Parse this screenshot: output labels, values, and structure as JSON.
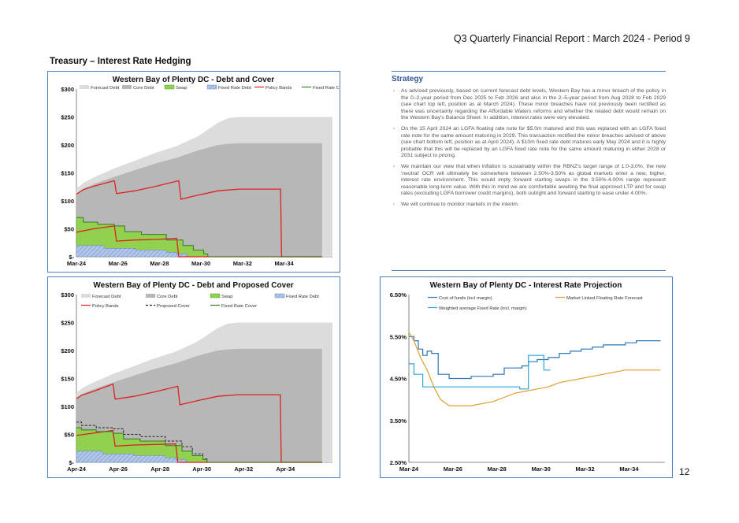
{
  "header": {
    "report_title": "Q3 Quarterly Financial Report : March 2024 - Period 9"
  },
  "section_title": "Treasury – Interest Rate Hedging",
  "page_number": "12",
  "colors": {
    "forecast_debt": "#dcdcdc",
    "core_debt": "#b7b7b7",
    "swap": "#92d050",
    "fixed_rate_debt": "#b4c7e7",
    "policy_bands": "#e02020",
    "fixed_rate_cover": "#3a7d22",
    "cost_of_funds": "#2e75b6",
    "floating_forecast": "#e0a030",
    "weighted_fixed": "#2aa8d8",
    "panel_border": "#4f7fb8"
  },
  "strategy": {
    "title": "Strategy",
    "bullets": [
      "As advised previously, based on current forecast debt levels, Western Bay has a minor breach of the policy in the 0–2-year period from Dec 2025 to Feb 2026 and also in the 2–5-year period from Aug 2028 to Feb 2029 (see chart top left, position as at March 2024). These minor breaches have not previously been rectified as there was uncertainty regarding the Affordable Waters reforms and whether the related debt would remain on the Western Bay's Balance Sheet. In addition, interest rates were very elevated.",
      "On the 15 April 2024 an LGFA floating rate note for $5.0m matured and this was replaced with an LGFA fixed rate note for the same amount maturing in 2029. This transaction rectified the minor breaches advised of above (see chart bottom left, position as at April 2024). A $10m fixed rate debt matures early May 2024 and it is highly probable that this will be replaced by an LGFA fixed rate note for the same amount maturing in either 2028 or 2031 subject to pricing.",
      "We maintain our view that when inflation is sustainably within the RBNZ's target range of 1.0-3.0%, the new 'neutral' OCR will ultimately be somewhere between 2.50%-3.50% as global markets enter a new, higher, interest rate environment. This would imply forward starting swaps in the 3.50%-4.00% range represent reasonable long-term value. With this in mind we are comfortable awaiting the final approved LTP and for swap rates (excluding LGFA borrower credit margins), both outright and forward starting to ease under 4.00%.",
      "We will continue to monitor markets in the interim."
    ]
  },
  "chart_data": [
    {
      "type": "area",
      "title": "Western Bay of Plenty DC - Debt and Cover",
      "legend": [
        "Forecast Debt",
        "Core Debt",
        "Swap",
        "Fixed Rate Debt",
        "Policy Bands",
        "Fixed Rate Cover"
      ],
      "legend_placement": "top",
      "y_ticks": [
        "$300",
        "$250",
        "$200",
        "$150",
        "$100",
        "$50",
        "$-"
      ],
      "x_ticks": [
        "Mar-24",
        "Mar-26",
        "Mar-28",
        "Mar-30",
        "Mar-32",
        "Mar-34"
      ],
      "ylim": [
        0,
        300
      ],
      "xlim": [
        2024.17,
        2036.5
      ],
      "x_tick_values": [
        2024.17,
        2026.17,
        2028.17,
        2030.17,
        2032.17,
        2034.17
      ],
      "series": [
        {
          "name": "Forecast Debt",
          "style": "area",
          "x": [
            2024.17,
            2024.5,
            2025,
            2026,
            2027,
            2028,
            2029,
            2030,
            2031,
            2031.5,
            2032,
            2033,
            2034,
            2035,
            2036,
            2036.5
          ],
          "y": [
            122,
            132,
            142,
            158,
            172,
            186,
            198,
            215,
            240,
            248,
            250,
            250,
            250,
            250,
            250,
            250
          ]
        },
        {
          "name": "Core Debt",
          "style": "area",
          "x": [
            2024.17,
            2024.5,
            2025,
            2026,
            2027,
            2028,
            2029,
            2030,
            2031,
            2031.5,
            2032,
            2033,
            2034,
            2035,
            2036
          ],
          "y": [
            112,
            122,
            130,
            143,
            155,
            167,
            177,
            190,
            200,
            202,
            203,
            203,
            203,
            203,
            203
          ]
        },
        {
          "name": "Swap",
          "style": "step-area",
          "x": [
            2024.17,
            2024.5,
            2025.2,
            2026,
            2026.5,
            2027.3,
            2028.5,
            2029.3,
            2029.8,
            2030.3,
            2030.5
          ],
          "y": [
            70,
            62,
            58,
            55,
            45,
            40,
            30,
            20,
            12,
            5,
            0
          ]
        },
        {
          "name": "Fixed Rate Debt",
          "style": "step-area",
          "x": [
            2024.17,
            2025.5,
            2027,
            2028.5,
            2029,
            2029.5
          ],
          "y": [
            20,
            15,
            12,
            8,
            5,
            0
          ]
        },
        {
          "name": "Policy Bands",
          "style": "line",
          "x": [
            2024.17,
            2024.5,
            2025,
            2026,
            2026.1,
            2027,
            2028,
            2029.1,
            2029.2,
            2030,
            2031,
            2032,
            2033,
            2034,
            2034.05,
            2036
          ],
          "y": [
            112,
            120,
            126,
            136,
            113,
            118,
            126,
            136,
            103,
            110,
            118,
            121,
            121,
            121,
            0,
            0
          ]
        },
        {
          "name": "Policy Bands (lower)",
          "style": "line",
          "x": [
            2024.17,
            2025,
            2026,
            2026.1,
            2027,
            2028,
            2029,
            2029.1,
            2036
          ],
          "y": [
            44,
            50,
            55,
            28,
            30,
            31,
            33,
            0,
            0
          ]
        },
        {
          "name": "Fixed Rate Cover",
          "style": "step-line",
          "x": [
            2024.17,
            2024.5,
            2025.2,
            2026,
            2026.5,
            2027.3,
            2028.5,
            2029.3,
            2029.8,
            2030.3,
            2030.5,
            2036
          ],
          "y": [
            70,
            62,
            58,
            55,
            45,
            40,
            30,
            20,
            12,
            5,
            0,
            0
          ]
        }
      ]
    },
    {
      "type": "area",
      "title": "Western Bay of Plenty DC - Debt and Proposed Cover",
      "legend": [
        "Forecast Debt",
        "Core Debt",
        "Swap",
        "Fixed Rate Debt",
        "Policy Bands",
        "Proposed Cover",
        "Fixed Rate Cover"
      ],
      "legend_placement": "top",
      "y_ticks": [
        "$300",
        "$250",
        "$200",
        "$150",
        "$100",
        "$50",
        "$-"
      ],
      "x_ticks": [
        "Apr-24",
        "Apr-26",
        "Apr-28",
        "Apr-30",
        "Apr-32",
        "Apr-34"
      ],
      "ylim": [
        0,
        300
      ],
      "xlim": [
        2024.25,
        2036.5
      ],
      "x_tick_values": [
        2024.25,
        2026.25,
        2028.25,
        2030.25,
        2032.25,
        2034.25
      ],
      "series": [
        {
          "name": "Forecast Debt",
          "style": "area",
          "x": [
            2024.25,
            2024.5,
            2025,
            2026,
            2027,
            2028,
            2029,
            2030,
            2031,
            2031.5,
            2032,
            2033,
            2034,
            2035,
            2036,
            2036.5
          ],
          "y": [
            124,
            132,
            142,
            158,
            172,
            186,
            198,
            215,
            240,
            248,
            250,
            250,
            250,
            250,
            250,
            250
          ]
        },
        {
          "name": "Core Debt",
          "style": "area",
          "x": [
            2024.25,
            2024.5,
            2025,
            2026,
            2027,
            2028,
            2029,
            2030,
            2031,
            2031.5,
            2032,
            2033,
            2034,
            2035,
            2036
          ],
          "y": [
            114,
            122,
            130,
            143,
            155,
            167,
            177,
            190,
            200,
            202,
            203,
            203,
            203,
            203,
            203
          ]
        },
        {
          "name": "Swap",
          "style": "step-area",
          "x": [
            2024.25,
            2024.5,
            2025.2,
            2026,
            2026.5,
            2027.3,
            2028.5,
            2029.3,
            2029.8,
            2030.3,
            2030.5
          ],
          "y": [
            62,
            58,
            55,
            52,
            42,
            38,
            30,
            20,
            12,
            5,
            0
          ]
        },
        {
          "name": "Fixed Rate Debt",
          "style": "step-area",
          "x": [
            2024.25,
            2025.5,
            2027,
            2028.5,
            2029,
            2029.5
          ],
          "y": [
            20,
            15,
            12,
            8,
            5,
            0
          ]
        },
        {
          "name": "Policy Bands",
          "style": "line",
          "x": [
            2024.25,
            2024.5,
            2025,
            2026,
            2026.1,
            2027,
            2028,
            2029.1,
            2029.2,
            2030,
            2031,
            2032,
            2033,
            2034,
            2034.05,
            2036
          ],
          "y": [
            114,
            120,
            126,
            140,
            113,
            118,
            126,
            136,
            103,
            110,
            118,
            121,
            121,
            121,
            0,
            0
          ]
        },
        {
          "name": "Policy Bands (lower)",
          "style": "line",
          "x": [
            2024.25,
            2025,
            2026,
            2026.1,
            2027,
            2028,
            2029,
            2029.1,
            2036
          ],
          "y": [
            48,
            52,
            57,
            29,
            31,
            32,
            33,
            0,
            0
          ]
        },
        {
          "name": "Proposed Cover",
          "style": "dashed-step",
          "x": [
            2024.25,
            2024.5,
            2025.2,
            2026,
            2026.5,
            2027.3,
            2028.5,
            2029.3,
            2029.8,
            2030.3,
            2030.5,
            2036
          ],
          "y": [
            72,
            66,
            62,
            60,
            50,
            46,
            38,
            28,
            15,
            6,
            0,
            0
          ]
        },
        {
          "name": "Fixed Rate Cover",
          "style": "step-line",
          "x": [
            2024.25,
            2024.5,
            2025.2,
            2026,
            2026.5,
            2027.3,
            2028.5,
            2029.3,
            2029.8,
            2030.3,
            2030.5,
            2036
          ],
          "y": [
            62,
            58,
            55,
            52,
            42,
            38,
            30,
            20,
            12,
            5,
            0,
            0
          ]
        }
      ]
    },
    {
      "type": "line",
      "title": "Western Bay of Plenty DC - Interest Rate Projection",
      "legend": [
        "Cost of funds (incl margin)",
        "Market Linked Floating Rate Forecast",
        "Weighted average Fixed Rate (incl. margin)"
      ],
      "legend_placement": "top",
      "y_ticks": [
        "6.50%",
        "5.50%",
        "4.50%",
        "3.50%",
        "2.50%"
      ],
      "x_ticks": [
        "Mar-24",
        "Mar-26",
        "Mar-28",
        "Mar-30",
        "Mar-32",
        "Mar-34"
      ],
      "ylim": [
        2.5,
        6.5
      ],
      "xlim": [
        2024.17,
        2035.8
      ],
      "x_tick_values": [
        2024.17,
        2026.17,
        2028.17,
        2030.17,
        2032.17,
        2034.17
      ],
      "series": [
        {
          "name": "Cost of funds (incl margin)",
          "style": "step-line",
          "x": [
            2024.17,
            2024.4,
            2024.6,
            2024.8,
            2025,
            2025.2,
            2025.5,
            2026,
            2026.5,
            2027,
            2027.5,
            2028,
            2028.5,
            2029,
            2029.3,
            2029.6,
            2030,
            2030.5,
            2031,
            2031.5,
            2032,
            2032.5,
            2033,
            2033.5,
            2034,
            2034.5,
            2035,
            2035.6
          ],
          "y": [
            5.5,
            5.4,
            5.2,
            5.05,
            5.15,
            5.1,
            4.6,
            4.5,
            4.5,
            4.55,
            4.55,
            4.6,
            4.75,
            4.75,
            4.8,
            4.9,
            4.95,
            5.0,
            5.1,
            5.15,
            5.2,
            5.25,
            5.3,
            5.3,
            5.35,
            5.4,
            5.4,
            5.4
          ]
        },
        {
          "name": "Market Linked Floating Rate Forecast",
          "style": "line",
          "x": [
            2024.17,
            2024.4,
            2024.7,
            2025,
            2025.3,
            2025.6,
            2026,
            2026.5,
            2027,
            2027.5,
            2028,
            2028.5,
            2029,
            2029.5,
            2030,
            2030.5,
            2031,
            2031.5,
            2032,
            2032.5,
            2033,
            2033.5,
            2034,
            2034.5,
            2035,
            2035.6
          ],
          "y": [
            5.6,
            5.4,
            5.0,
            4.7,
            4.3,
            4.0,
            3.85,
            3.85,
            3.85,
            3.9,
            3.95,
            4.05,
            4.15,
            4.2,
            4.25,
            4.3,
            4.4,
            4.45,
            4.5,
            4.55,
            4.6,
            4.65,
            4.7,
            4.7,
            4.7,
            4.7
          ]
        },
        {
          "name": "Weighted average Fixed Rate (incl. margin)",
          "style": "step-line",
          "x": [
            2024.17,
            2024.4,
            2024.8,
            2025.2,
            2026,
            2027,
            2028,
            2028.5,
            2029.2,
            2029.6,
            2030,
            2030.3,
            2030.6
          ],
          "y": [
            4.85,
            4.6,
            4.3,
            4.3,
            4.3,
            4.3,
            4.3,
            4.3,
            4.25,
            5.05,
            5.05,
            4.7,
            4.7
          ]
        }
      ]
    }
  ]
}
